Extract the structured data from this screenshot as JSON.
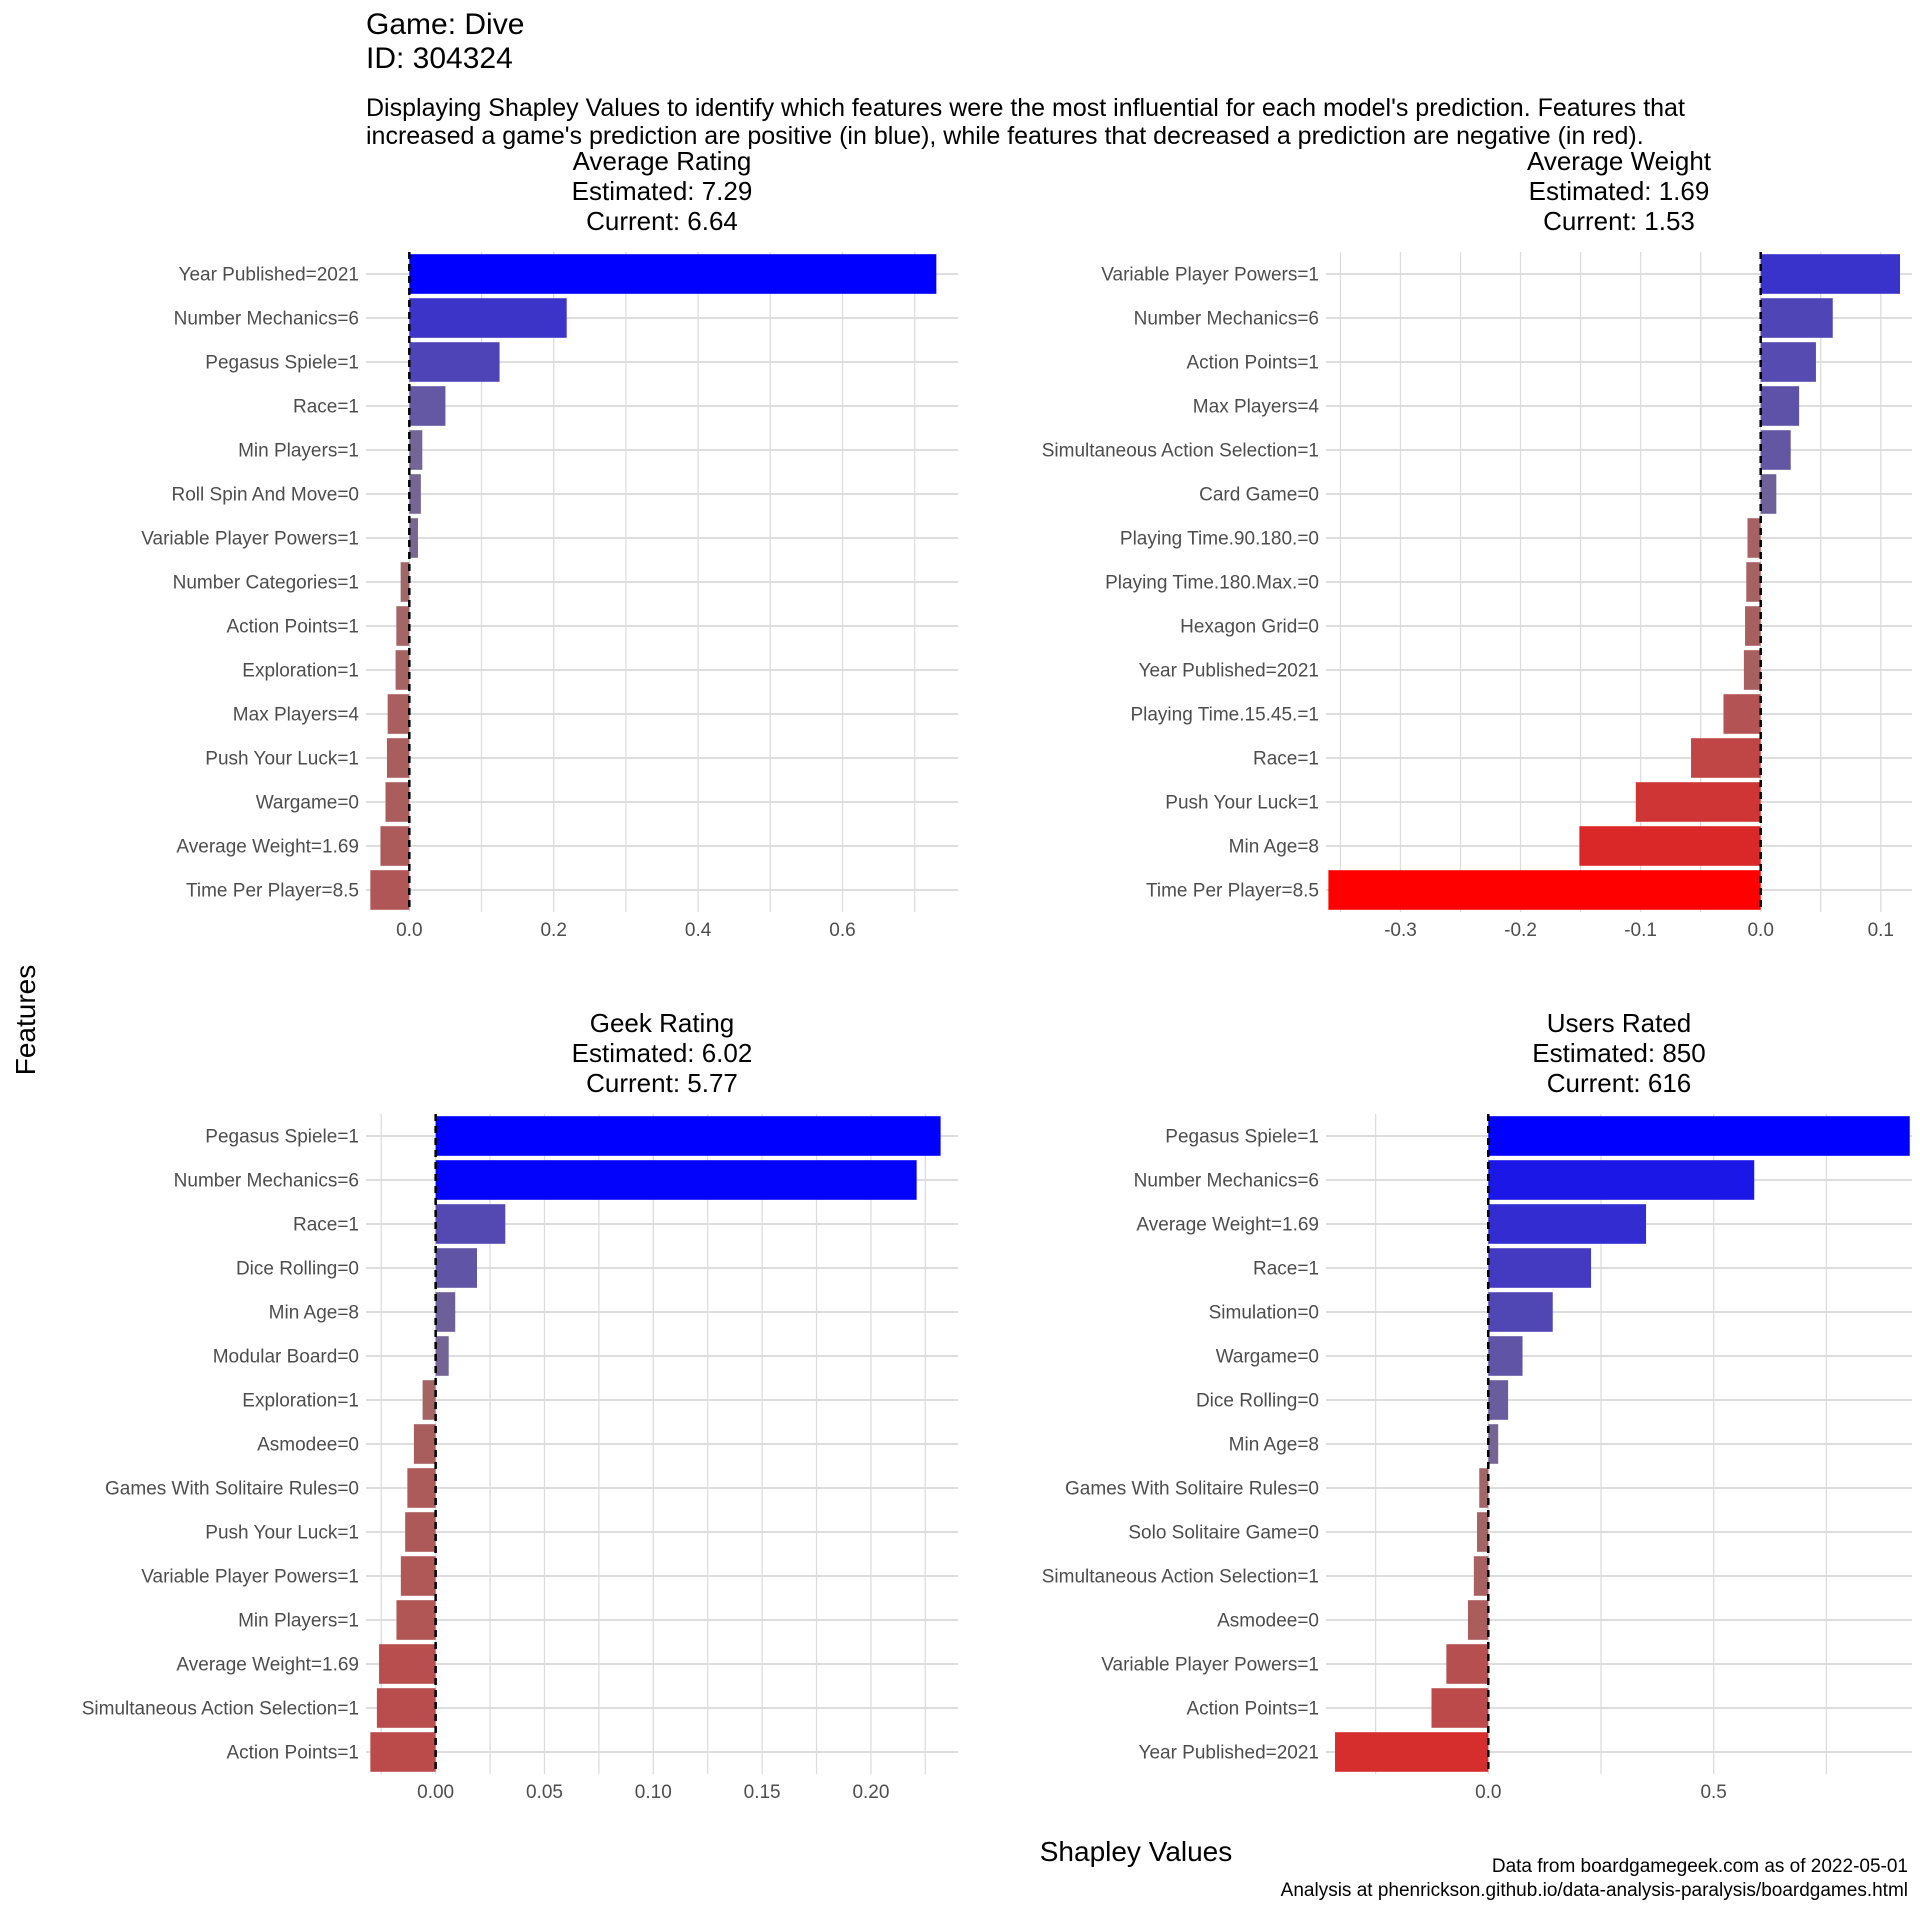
{
  "header": {
    "title_line1": "Game: Dive",
    "title_line2": "ID: 304324",
    "subtitle_line1": "Displaying Shapley Values to identify which features were the most influential for each model's prediction. Features that",
    "subtitle_line2": "increased a game's prediction are positive (in blue), while features that decreased a prediction are negative (in red)."
  },
  "axes": {
    "y_label": "Features",
    "x_label": "Shapley Values"
  },
  "caption": {
    "line1": "Data from boardgamegeek.com as of 2022-05-01",
    "line2": "Analysis at phenrickson.github.io/data-analysis-paralysis/boardgames.html"
  },
  "colors": {
    "positive": "#0000ff",
    "negative": "#ff0000",
    "neutral": "#8e7c7c",
    "grid": "#dddddd",
    "zero_line": "#000000"
  },
  "chart_data": [
    {
      "type": "bar",
      "orientation": "horizontal",
      "title": "Average Rating",
      "estimated_label": "Estimated: 7.29",
      "current_label": "Current: 6.64",
      "xlim": [
        -0.06,
        0.76
      ],
      "xticks": [
        0.0,
        0.2,
        0.4,
        0.6
      ],
      "tick_labels": [
        "0.0",
        "0.2",
        "0.4",
        "0.6"
      ],
      "categories": [
        "Year Published=2021",
        "Number Mechanics=6",
        "Pegasus Spiele=1",
        "Race=1",
        "Min Players=1",
        "Roll Spin And Move=0",
        "Variable Player Powers=1",
        "Number Categories=1",
        "Action Points=1",
        "Exploration=1",
        "Max Players=4",
        "Push Your Luck=1",
        "Wargame=0",
        "Average Weight=1.69",
        "Time Per Player=8.5"
      ],
      "values": [
        0.73,
        0.218,
        0.125,
        0.05,
        0.018,
        0.016,
        0.012,
        -0.012,
        -0.018,
        -0.019,
        -0.03,
        -0.031,
        -0.033,
        -0.04,
        -0.054
      ]
    },
    {
      "type": "bar",
      "orientation": "horizontal",
      "title": "Average Weight",
      "estimated_label": "Estimated: 1.69",
      "current_label": "Current: 1.53",
      "xlim": [
        -0.362,
        0.126
      ],
      "xticks": [
        -0.3,
        -0.2,
        -0.1,
        0.0,
        0.1
      ],
      "tick_labels": [
        "-0.3",
        "-0.2",
        "-0.1",
        "0.0",
        "0.1"
      ],
      "categories": [
        "Variable Player Powers=1",
        "Number Mechanics=6",
        "Action Points=1",
        "Max Players=4",
        "Simultaneous Action Selection=1",
        "Card Game=0",
        "Playing Time.90.180.=0",
        "Playing Time.180.Max.=0",
        "Hexagon Grid=0",
        "Year Published=2021",
        "Playing Time.15.45.=1",
        "Race=1",
        "Push Your Luck=1",
        "Min Age=8",
        "Time Per Player=8.5"
      ],
      "values": [
        0.116,
        0.06,
        0.046,
        0.032,
        0.025,
        0.013,
        -0.011,
        -0.012,
        -0.013,
        -0.014,
        -0.031,
        -0.058,
        -0.104,
        -0.151,
        -0.36
      ]
    },
    {
      "type": "bar",
      "orientation": "horizontal",
      "title": "Geek Rating",
      "estimated_label": "Estimated: 6.02",
      "current_label": "Current: 5.77",
      "xlim": [
        -0.032,
        0.24
      ],
      "xticks": [
        0.0,
        0.05,
        0.1,
        0.15,
        0.2
      ],
      "tick_labels": [
        "0.00",
        "0.05",
        "0.10",
        "0.15",
        "0.20"
      ],
      "categories": [
        "Pegasus Spiele=1",
        "Number Mechanics=6",
        "Race=1",
        "Dice Rolling=0",
        "Min Age=8",
        "Modular Board=0",
        "Exploration=1",
        "Asmodee=0",
        "Games With Solitaire Rules=0",
        "Push Your Luck=1",
        "Variable Player Powers=1",
        "Min Players=1",
        "Average Weight=1.69",
        "Simultaneous Action Selection=1",
        "Action Points=1"
      ],
      "values": [
        0.232,
        0.221,
        0.032,
        0.019,
        0.009,
        0.006,
        -0.006,
        -0.01,
        -0.013,
        -0.014,
        -0.016,
        -0.018,
        -0.026,
        -0.027,
        -0.03
      ]
    },
    {
      "type": "bar",
      "orientation": "horizontal",
      "title": "Users Rated",
      "estimated_label": "Estimated: 850",
      "current_label": "Current: 616",
      "xlim": [
        -0.36,
        0.94
      ],
      "xticks": [
        0.0,
        0.5
      ],
      "tick_labels": [
        "0.0",
        "0.5"
      ],
      "categories": [
        "Pegasus Spiele=1",
        "Number Mechanics=6",
        "Average Weight=1.69",
        "Race=1",
        "Simulation=0",
        "Wargame=0",
        "Dice Rolling=0",
        "Min Age=8",
        "Games With Solitaire Rules=0",
        "Solo Solitaire Game=0",
        "Simultaneous Action Selection=1",
        "Asmodee=0",
        "Variable Player Powers=1",
        "Action Points=1",
        "Year Published=2021"
      ],
      "values": [
        0.935,
        0.59,
        0.35,
        0.228,
        0.143,
        0.076,
        0.044,
        0.022,
        -0.02,
        -0.025,
        -0.032,
        -0.045,
        -0.093,
        -0.126,
        -0.34
      ]
    }
  ]
}
